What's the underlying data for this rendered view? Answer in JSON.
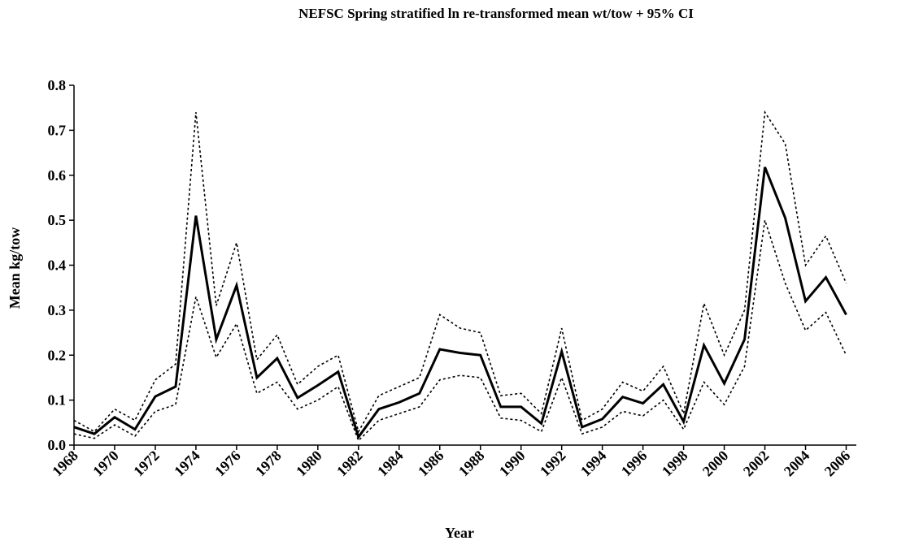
{
  "chart_data": {
    "type": "line",
    "title": "NEFSC Spring stratified ln re-transformed mean wt/tow + 95% CI",
    "x_label": "Year",
    "y_label": "Mean kg/tow",
    "x": [
      1968,
      1969,
      1970,
      1971,
      1972,
      1973,
      1974,
      1975,
      1976,
      1977,
      1978,
      1979,
      1980,
      1981,
      1982,
      1983,
      1984,
      1985,
      1986,
      1987,
      1988,
      1989,
      1990,
      1991,
      1992,
      1993,
      1994,
      1995,
      1996,
      1997,
      1998,
      1999,
      2000,
      2001,
      2002,
      2003,
      2004,
      2005,
      2006
    ],
    "series": [
      {
        "color": "#000000",
        "style": "solid",
        "values": [
          0.04,
          0.025,
          0.062,
          0.035,
          0.108,
          0.13,
          0.51,
          0.235,
          0.355,
          0.15,
          0.193,
          0.105,
          0.133,
          0.163,
          0.018,
          0.08,
          0.095,
          0.115,
          0.213,
          0.205,
          0.2,
          0.085,
          0.085,
          0.048,
          0.208,
          0.04,
          0.058,
          0.107,
          0.093,
          0.135,
          0.052,
          0.222,
          0.137,
          0.235,
          0.618,
          0.505,
          0.32,
          0.373,
          0.29
        ]
      },
      {
        "color": "#000000",
        "style": "dotted",
        "values": [
          0.055,
          0.03,
          0.08,
          0.055,
          0.145,
          0.18,
          0.74,
          0.31,
          0.45,
          0.19,
          0.245,
          0.135,
          0.175,
          0.2,
          0.03,
          0.11,
          0.13,
          0.15,
          0.29,
          0.26,
          0.25,
          0.11,
          0.115,
          0.07,
          0.26,
          0.055,
          0.08,
          0.14,
          0.12,
          0.175,
          0.07,
          0.315,
          0.2,
          0.3,
          0.74,
          0.67,
          0.4,
          0.465,
          0.36
        ]
      },
      {
        "color": "#000000",
        "style": "dotted",
        "values": [
          0.025,
          0.015,
          0.045,
          0.02,
          0.075,
          0.09,
          0.33,
          0.195,
          0.27,
          0.115,
          0.14,
          0.08,
          0.1,
          0.13,
          0.01,
          0.055,
          0.07,
          0.085,
          0.145,
          0.155,
          0.15,
          0.06,
          0.055,
          0.03,
          0.15,
          0.025,
          0.04,
          0.075,
          0.065,
          0.1,
          0.035,
          0.14,
          0.09,
          0.175,
          0.5,
          0.36,
          0.255,
          0.295,
          0.2
        ]
      }
    ],
    "xlim": [
      1968,
      2006.5
    ],
    "xticks": [
      1968,
      1970,
      1972,
      1974,
      1976,
      1978,
      1980,
      1982,
      1984,
      1986,
      1988,
      1990,
      1992,
      1994,
      1996,
      1998,
      2000,
      2002,
      2004,
      2006
    ],
    "ylim": [
      0,
      0.8
    ],
    "yticks": [
      {
        "value": 0,
        "label": "0.0"
      },
      0.1,
      0.2,
      0.3,
      0.4,
      0.5,
      0.6,
      0.7,
      0.8
    ],
    "grid": false
  }
}
